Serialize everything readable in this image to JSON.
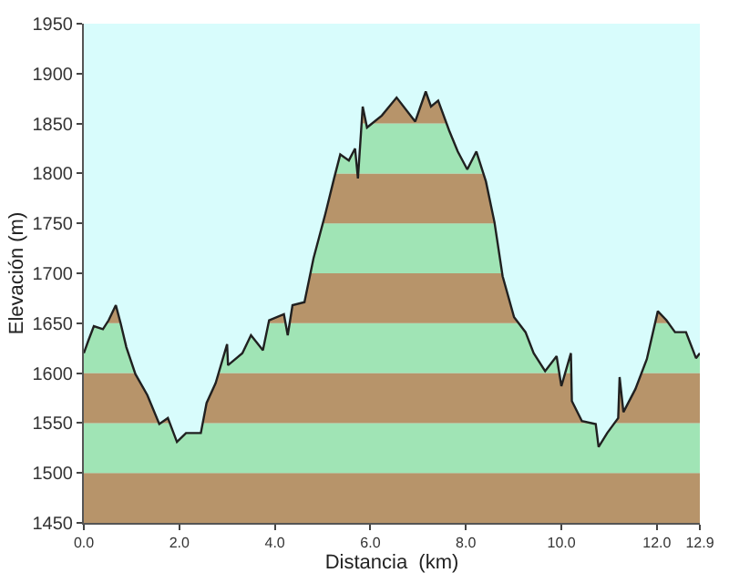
{
  "chart_data": {
    "type": "area",
    "xlabel": "Distancia  (km)",
    "ylabel": "Elevación (m)",
    "x": [
      0.0,
      0.09,
      0.21,
      0.4,
      0.52,
      0.67,
      0.77,
      0.89,
      1.08,
      1.33,
      1.58,
      1.76,
      1.95,
      2.14,
      2.45,
      2.57,
      2.76,
      3.0,
      3.02,
      3.32,
      3.5,
      3.75,
      3.88,
      4.19,
      4.27,
      4.37,
      4.62,
      4.81,
      5.06,
      5.24,
      5.37,
      5.55,
      5.68,
      5.74,
      5.84,
      5.93,
      6.24,
      6.55,
      6.94,
      7.16,
      7.27,
      7.42,
      7.65,
      7.83,
      8.03,
      8.22,
      8.42,
      8.6,
      8.77,
      9.01,
      9.25,
      9.42,
      9.66,
      9.9,
      10.0,
      10.2,
      10.22,
      10.43,
      10.72,
      10.78,
      10.96,
      11.19,
      11.22,
      11.3,
      11.55,
      11.79,
      12.02,
      12.2,
      12.38,
      12.61,
      12.82,
      12.9
    ],
    "series": [
      {
        "color": "#202020",
        "values": [
          1620,
          1632,
          1647,
          1644,
          1653,
          1668,
          1650,
          1626,
          1599,
          1578,
          1549,
          1555,
          1531,
          1540,
          1540,
          1570,
          1590,
          1629,
          1608,
          1620,
          1638,
          1623,
          1653,
          1659,
          1638,
          1668,
          1671,
          1715,
          1760,
          1795,
          1819,
          1813,
          1825,
          1795,
          1867,
          1846,
          1858,
          1876,
          1852,
          1882,
          1867,
          1873,
          1843,
          1822,
          1804,
          1822,
          1792,
          1751,
          1697,
          1656,
          1641,
          1620,
          1602,
          1617,
          1587,
          1620,
          1572,
          1552,
          1549,
          1526,
          1540,
          1555,
          1596,
          1561,
          1584,
          1614,
          1662,
          1653,
          1641,
          1641,
          1615,
          1620
        ]
      }
    ],
    "xlim": [
      0,
      12.9
    ],
    "xticks": [
      {
        "value": 0,
        "label": "0.0"
      },
      {
        "value": 2,
        "label": "2.0"
      },
      {
        "value": 4,
        "label": "4.0"
      },
      {
        "value": 6,
        "label": "6.0"
      },
      {
        "value": 8,
        "label": "8.0"
      },
      {
        "value": 10,
        "label": "10.0"
      },
      {
        "value": 12,
        "label": "12.0"
      },
      {
        "value": 12.9,
        "label": "12.9"
      }
    ],
    "ylim": [
      1450,
      1950
    ],
    "yticks": [
      1450,
      1500,
      1550,
      1600,
      1650,
      1700,
      1750,
      1800,
      1850,
      1900,
      1950
    ],
    "bands": [
      {
        "axis": "y",
        "from": 1450,
        "to": 1500,
        "color": "#b8946a"
      },
      {
        "axis": "y",
        "from": 1500,
        "to": 1550,
        "color": "#9ef0c0"
      },
      {
        "axis": "y",
        "from": 1550,
        "to": 1600,
        "color": "#b8946a"
      },
      {
        "axis": "y",
        "from": 1600,
        "to": 1650,
        "color": "#9ef0c0"
      },
      {
        "axis": "y",
        "from": 1650,
        "to": 1700,
        "color": "#b8946a"
      },
      {
        "axis": "y",
        "from": 1700,
        "to": 1750,
        "color": "#9ef0c0"
      },
      {
        "axis": "y",
        "from": 1750,
        "to": 1800,
        "color": "#b8946a"
      },
      {
        "axis": "y",
        "from": 1800,
        "to": 1850,
        "color": "#9ef0c0"
      },
      {
        "axis": "y",
        "from": 1850,
        "to": 1900,
        "color": "#b8946a"
      }
    ],
    "grid": false
  }
}
